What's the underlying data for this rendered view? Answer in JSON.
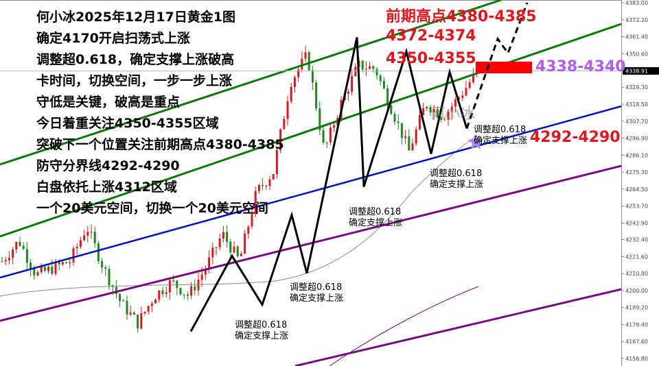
{
  "title_lines": [
    "何小冰2025年12月17日黄金1图",
    "确定4170开启扫荡式上涨",
    "调整超0.618，确定支撑上涨破高",
    "卡时间，切换空间，一步一步上涨",
    "守低是关键，破高是重点",
    "今日着重关注4350-4355区域",
    "突破下一个位置关注前期高点4380-4385",
    "防守分界线4292-4290",
    "白盘依托上涨4312区域",
    "一个20美元空间，切换一个20美元空间"
  ],
  "level_labels": {
    "prev_high": "前期高点4380-4385",
    "l1": "4372-4374",
    "l2": "4350-4355",
    "current_zone": "4338-4340",
    "defense": "4292-4290"
  },
  "fib_notes": [
    {
      "line1": "调整超0.618",
      "line2": "确定支撑上涨"
    },
    {
      "line1": "调整超0.618",
      "line2": "确定支撑上涨"
    },
    {
      "line1": "调整超0.618",
      "line2": "确定支撑上涨"
    },
    {
      "line1": "调整超0.618",
      "line2": "确定支撑上涨"
    },
    {
      "line1": "调整超0.618",
      "line2": "确定支撑上涨"
    }
  ],
  "watermark": "何小冰",
  "colors": {
    "up": "#e8141b",
    "down": "#1a8a1a",
    "channel_green": "#0a7a0a",
    "channel_blue": "#0010c8",
    "channel_purple": "#7a0a80",
    "zone": "#ff0000",
    "zone_label": "#b45cf0",
    "accent_red": "#e8141b"
  },
  "chart_data": {
    "type": "candlestick",
    "ylim": [
      4156.8,
      4383.0
    ],
    "yticks": [
      "4383.00",
      "4372.20",
      "4361.40",
      "4350.60",
      "4329.30",
      "4318.50",
      "4307.70",
      "4296.90",
      "4286.10",
      "4275.30",
      "4264.50",
      "4253.70",
      "4242.90",
      "4232.40",
      "4221.60",
      "4210.80",
      "4200.00",
      "4189.20",
      "4178.40",
      "4167.60",
      "4156.80"
    ],
    "current_price": "4338.91",
    "approx_close_path": [
      4218.6,
      4231.7,
      4209.8,
      4214.2,
      4218.6,
      4240.5,
      4214.2,
      4192.4,
      4179.2,
      4196.7,
      4205.5,
      4196.7,
      4214.2,
      4236.1,
      4218.6,
      4262.3,
      4275.4,
      4332.3,
      4349.8,
      4288.6,
      4319.2,
      4343.2,
      4341.0,
      4314.8,
      4288.6,
      4319.2,
      4310.4,
      4323.5,
      4338.9
    ],
    "zigzag_pivots": [
      4174,
      4222,
      4191,
      4248,
      4211,
      4361,
      4266,
      4352,
      4287,
      4339,
      4303
    ],
    "projection_pivots": [
      4303,
      4360,
      4351,
      4383
    ],
    "resistance_zone": [
      4338,
      4340
    ]
  }
}
